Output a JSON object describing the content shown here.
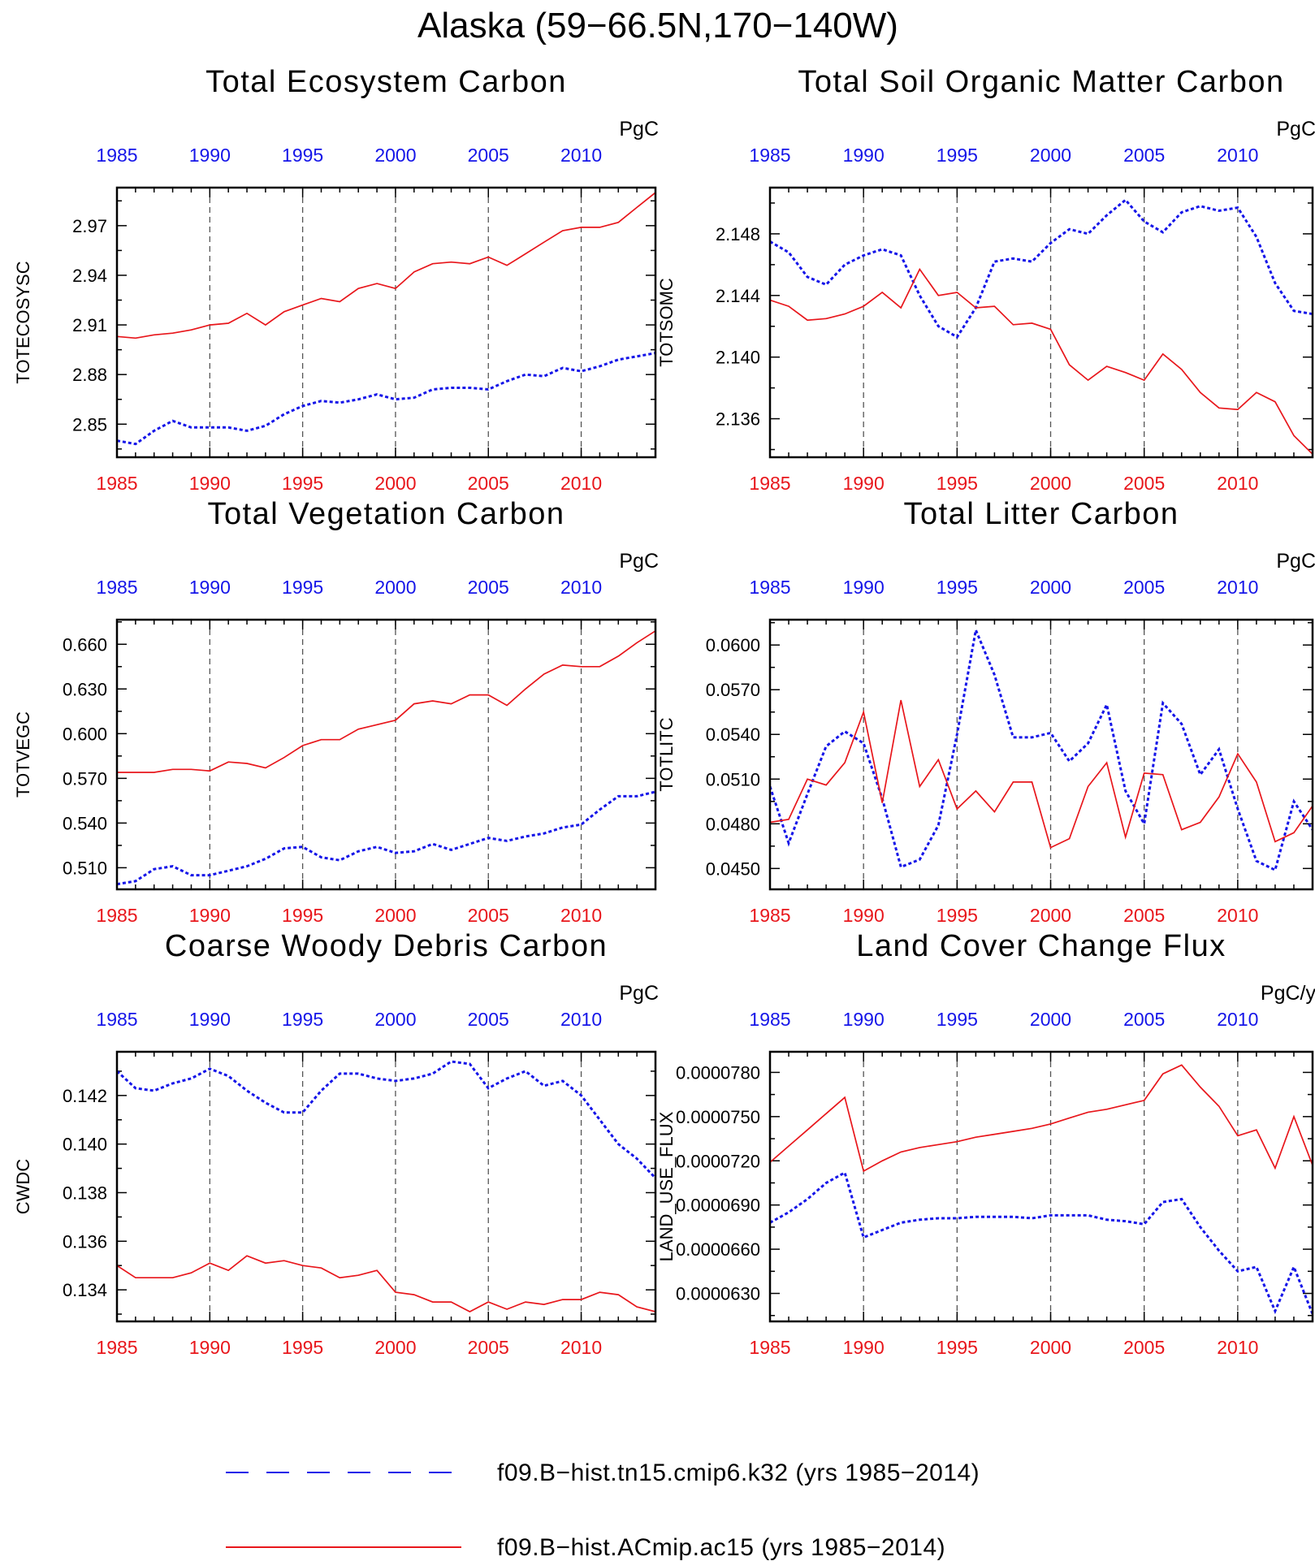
{
  "figure": {
    "title": "Alaska (59−66.5N,170−140W)",
    "legend": [
      {
        "label": "f09.B−hist.tn15.cmip6.k32 (yrs 1985−2014)",
        "color": "#1515e8",
        "style": "dashed"
      },
      {
        "label": "f09.B−hist.ACmip.ac15 (yrs 1985−2014)",
        "color": "#e8161b",
        "style": "solid"
      }
    ]
  },
  "chart_data": [
    {
      "type": "line",
      "title": "Total Ecosystem Carbon",
      "ylabel": "TOTECOSYSC",
      "units": "PgC",
      "xlim": [
        1985,
        2014
      ],
      "ylim": [
        2.83,
        2.993
      ],
      "yticks": [
        2.85,
        2.88,
        2.91,
        2.94,
        2.97
      ],
      "ytick_labels": [
        "2.85",
        "2.88",
        "2.91",
        "2.94",
        "2.97"
      ],
      "xticks": [
        1985,
        1990,
        1995,
        2000,
        2005,
        2010
      ],
      "xtick_labels": [
        "1985",
        "1990",
        "1995",
        "2000",
        "2005",
        "2010"
      ],
      "x": [
        1985,
        1986,
        1987,
        1988,
        1989,
        1990,
        1991,
        1992,
        1993,
        1994,
        1995,
        1996,
        1997,
        1998,
        1999,
        2000,
        2001,
        2002,
        2003,
        2004,
        2005,
        2006,
        2007,
        2008,
        2009,
        2010,
        2011,
        2012,
        2013,
        2014
      ],
      "series": [
        {
          "values": [
            2.84,
            2.838,
            2.846,
            2.852,
            2.848,
            2.848,
            2.848,
            2.846,
            2.849,
            2.856,
            2.861,
            2.864,
            2.863,
            2.865,
            2.868,
            2.865,
            2.866,
            2.871,
            2.872,
            2.872,
            2.871,
            2.876,
            2.88,
            2.879,
            2.884,
            2.882,
            2.885,
            2.889,
            2.891,
            2.893
          ],
          "color": "#1515e8",
          "style": "dashed"
        },
        {
          "values": [
            2.903,
            2.902,
            2.904,
            2.905,
            2.907,
            2.91,
            2.911,
            2.917,
            2.91,
            2.918,
            2.922,
            2.926,
            2.924,
            2.932,
            2.935,
            2.932,
            2.942,
            2.947,
            2.948,
            2.947,
            2.951,
            2.946,
            2.953,
            2.96,
            2.967,
            2.969,
            2.969,
            2.972,
            2.981,
            2.99
          ],
          "color": "#e8161b",
          "style": "solid"
        }
      ]
    },
    {
      "type": "line",
      "title": "Total Soil Organic Matter Carbon",
      "ylabel": "TOTSOMC",
      "units": "PgC",
      "xlim": [
        1985,
        2014
      ],
      "ylim": [
        2.1335,
        2.151
      ],
      "yticks": [
        2.136,
        2.14,
        2.144,
        2.148
      ],
      "ytick_labels": [
        "2.136",
        "2.140",
        "2.144",
        "2.148"
      ],
      "xticks": [
        1985,
        1990,
        1995,
        2000,
        2005,
        2010
      ],
      "xtick_labels": [
        "1985",
        "1990",
        "1995",
        "2000",
        "2005",
        "2010"
      ],
      "x": [
        1985,
        1986,
        1987,
        1988,
        1989,
        1990,
        1991,
        1992,
        1993,
        1994,
        1995,
        1996,
        1997,
        1998,
        1999,
        2000,
        2001,
        2002,
        2003,
        2004,
        2005,
        2006,
        2007,
        2008,
        2009,
        2010,
        2011,
        2012,
        2013,
        2014
      ],
      "series": [
        {
          "values": [
            2.1475,
            2.1468,
            2.1452,
            2.1447,
            2.146,
            2.1466,
            2.147,
            2.1466,
            2.144,
            2.142,
            2.1413,
            2.1432,
            2.1462,
            2.1464,
            2.1462,
            2.1474,
            2.1483,
            2.148,
            2.1492,
            2.1502,
            2.1488,
            2.1481,
            2.1494,
            2.1498,
            2.1495,
            2.1497,
            2.1478,
            2.1448,
            2.143,
            2.1428
          ],
          "color": "#1515e8",
          "style": "dashed"
        },
        {
          "values": [
            2.1437,
            2.1433,
            2.1424,
            2.1425,
            2.1428,
            2.1433,
            2.1442,
            2.1432,
            2.1457,
            2.144,
            2.1442,
            2.1432,
            2.1433,
            2.1421,
            2.1422,
            2.1418,
            2.1395,
            2.1385,
            2.1394,
            2.139,
            2.1385,
            2.1402,
            2.1392,
            2.1377,
            2.1367,
            2.1366,
            2.1377,
            2.1371,
            2.1349,
            2.1337
          ],
          "color": "#e8161b",
          "style": "solid"
        }
      ]
    },
    {
      "type": "line",
      "title": "Total Vegetation Carbon",
      "ylabel": "TOTVEGC",
      "units": "PgC",
      "xlim": [
        1985,
        2014
      ],
      "ylim": [
        0.4955,
        0.6765
      ],
      "yticks": [
        0.51,
        0.54,
        0.57,
        0.6,
        0.63,
        0.66
      ],
      "ytick_labels": [
        "0.510",
        "0.540",
        "0.570",
        "0.600",
        "0.630",
        "0.660"
      ],
      "xticks": [
        1985,
        1990,
        1995,
        2000,
        2005,
        2010
      ],
      "xtick_labels": [
        "1985",
        "1990",
        "1995",
        "2000",
        "2005",
        "2010"
      ],
      "x": [
        1985,
        1986,
        1987,
        1988,
        1989,
        1990,
        1991,
        1992,
        1993,
        1994,
        1995,
        1996,
        1997,
        1998,
        1999,
        2000,
        2001,
        2002,
        2003,
        2004,
        2005,
        2006,
        2007,
        2008,
        2009,
        2010,
        2011,
        2012,
        2013,
        2014
      ],
      "series": [
        {
          "values": [
            0.499,
            0.501,
            0.509,
            0.511,
            0.505,
            0.505,
            0.508,
            0.511,
            0.516,
            0.523,
            0.524,
            0.517,
            0.515,
            0.521,
            0.524,
            0.52,
            0.521,
            0.526,
            0.522,
            0.526,
            0.53,
            0.528,
            0.531,
            0.533,
            0.537,
            0.539,
            0.549,
            0.558,
            0.558,
            0.561
          ],
          "color": "#1515e8",
          "style": "dashed"
        },
        {
          "values": [
            0.574,
            0.574,
            0.574,
            0.576,
            0.576,
            0.575,
            0.581,
            0.58,
            0.577,
            0.584,
            0.592,
            0.596,
            0.596,
            0.603,
            0.606,
            0.609,
            0.62,
            0.622,
            0.62,
            0.626,
            0.626,
            0.619,
            0.63,
            0.64,
            0.646,
            0.645,
            0.645,
            0.652,
            0.661,
            0.669
          ],
          "color": "#e8161b",
          "style": "solid"
        }
      ]
    },
    {
      "type": "line",
      "title": "Total Litter Carbon",
      "ylabel": "TOTLITC",
      "units": "PgC",
      "xlim": [
        1985,
        2014
      ],
      "ylim": [
        0.0436,
        0.0617
      ],
      "yticks": [
        0.045,
        0.048,
        0.051,
        0.054,
        0.057,
        0.06
      ],
      "ytick_labels": [
        "0.0450",
        "0.0480",
        "0.0510",
        "0.0540",
        "0.0570",
        "0.0600"
      ],
      "xticks": [
        1985,
        1990,
        1995,
        2000,
        2005,
        2010
      ],
      "xtick_labels": [
        "1985",
        "1990",
        "1995",
        "2000",
        "2005",
        "2010"
      ],
      "x": [
        1985,
        1986,
        1987,
        1988,
        1989,
        1990,
        1991,
        1992,
        1993,
        1994,
        1995,
        1996,
        1997,
        1998,
        1999,
        2000,
        2001,
        2002,
        2003,
        2004,
        2005,
        2006,
        2007,
        2008,
        2009,
        2010,
        2011,
        2012,
        2013,
        2014
      ],
      "series": [
        {
          "values": [
            0.0505,
            0.0467,
            0.05,
            0.0532,
            0.0542,
            0.0534,
            0.0497,
            0.0451,
            0.0456,
            0.0479,
            0.054,
            0.061,
            0.058,
            0.0538,
            0.0538,
            0.0541,
            0.0522,
            0.0534,
            0.056,
            0.0502,
            0.048,
            0.0561,
            0.0547,
            0.0513,
            0.053,
            0.049,
            0.0455,
            0.0449,
            0.0495,
            0.0476
          ],
          "color": "#1515e8",
          "style": "dashed"
        },
        {
          "values": [
            0.0481,
            0.0483,
            0.051,
            0.0506,
            0.0521,
            0.0555,
            0.0494,
            0.0563,
            0.0505,
            0.0523,
            0.049,
            0.0502,
            0.0488,
            0.0508,
            0.0508,
            0.0464,
            0.047,
            0.0505,
            0.0521,
            0.0471,
            0.0514,
            0.0513,
            0.0476,
            0.0481,
            0.0498,
            0.0527,
            0.0508,
            0.0468,
            0.0474,
            0.0492
          ],
          "color": "#e8161b",
          "style": "solid"
        }
      ]
    },
    {
      "type": "line",
      "title": "Coarse Woody Debris Carbon",
      "ylabel": "CWDC",
      "units": "PgC",
      "xlim": [
        1985,
        2014
      ],
      "ylim": [
        0.1327,
        0.1438
      ],
      "yticks": [
        0.134,
        0.136,
        0.138,
        0.14,
        0.142
      ],
      "ytick_labels": [
        "0.134",
        "0.136",
        "0.138",
        "0.140",
        "0.142"
      ],
      "xticks": [
        1985,
        1990,
        1995,
        2000,
        2005,
        2010
      ],
      "xtick_labels": [
        "1985",
        "1990",
        "1995",
        "2000",
        "2005",
        "2010"
      ],
      "x": [
        1985,
        1986,
        1987,
        1988,
        1989,
        1990,
        1991,
        1992,
        1993,
        1994,
        1995,
        1996,
        1997,
        1998,
        1999,
        2000,
        2001,
        2002,
        2003,
        2004,
        2005,
        2006,
        2007,
        2008,
        2009,
        2010,
        2011,
        2012,
        2013,
        2014
      ],
      "series": [
        {
          "values": [
            0.143,
            0.1423,
            0.1422,
            0.1425,
            0.1427,
            0.1431,
            0.1428,
            0.1422,
            0.1417,
            0.1413,
            0.1413,
            0.1422,
            0.1429,
            0.1429,
            0.1427,
            0.1426,
            0.1427,
            0.1429,
            0.1434,
            0.1433,
            0.1423,
            0.1427,
            0.143,
            0.1424,
            0.1426,
            0.142,
            0.141,
            0.14,
            0.1394,
            0.1386
          ],
          "color": "#1515e8",
          "style": "dashed"
        },
        {
          "values": [
            0.135,
            0.1345,
            0.1345,
            0.1345,
            0.1347,
            0.1351,
            0.1348,
            0.1354,
            0.1351,
            0.1352,
            0.135,
            0.1349,
            0.1345,
            0.1346,
            0.1348,
            0.1339,
            0.1338,
            0.1335,
            0.1335,
            0.1331,
            0.1335,
            0.1332,
            0.1335,
            0.1334,
            0.1336,
            0.1336,
            0.1339,
            0.1338,
            0.1333,
            0.1331
          ],
          "color": "#e8161b",
          "style": "solid"
        }
      ]
    },
    {
      "type": "line",
      "title": "Land Cover Change Flux",
      "ylabel": "LAND_USE_FLUX",
      "units": "PgC/y",
      "xlim": [
        1985,
        2014
      ],
      "ylim": [
        6.11e-05,
        7.94e-05
      ],
      "yticks": [
        6.3e-05,
        6.6e-05,
        6.9e-05,
        7.2e-05,
        7.5e-05,
        7.8e-05
      ],
      "ytick_labels": [
        "0.0000630",
        "0.0000660",
        "0.0000690",
        "0.0000720",
        "0.0000750",
        "0.0000780"
      ],
      "xticks": [
        1985,
        1990,
        1995,
        2000,
        2005,
        2010
      ],
      "xtick_labels": [
        "1985",
        "1990",
        "1995",
        "2000",
        "2005",
        "2010"
      ],
      "x": [
        1985,
        1986,
        1987,
        1988,
        1989,
        1990,
        1991,
        1992,
        1993,
        1994,
        1995,
        1996,
        1997,
        1998,
        1999,
        2000,
        2001,
        2002,
        2003,
        2004,
        2005,
        2006,
        2007,
        2008,
        2009,
        2010,
        2011,
        2012,
        2013,
        2014
      ],
      "series": [
        {
          "values": [
            6.78e-05,
            6.85e-05,
            6.94e-05,
            7.05e-05,
            7.12e-05,
            6.68e-05,
            6.73e-05,
            6.78e-05,
            6.8e-05,
            6.81e-05,
            6.81e-05,
            6.82e-05,
            6.82e-05,
            6.82e-05,
            6.81e-05,
            6.83e-05,
            6.83e-05,
            6.83e-05,
            6.8e-05,
            6.79e-05,
            6.77e-05,
            6.92e-05,
            6.94e-05,
            6.75e-05,
            6.59e-05,
            6.45e-05,
            6.48e-05,
            6.18e-05,
            6.48e-05,
            6.16e-05
          ],
          "color": "#1515e8",
          "style": "dashed"
        },
        {
          "values": [
            7.19e-05,
            7.3e-05,
            7.41e-05,
            7.52e-05,
            7.63e-05,
            7.13e-05,
            7.2e-05,
            7.26e-05,
            7.29e-05,
            7.31e-05,
            7.33e-05,
            7.36e-05,
            7.38e-05,
            7.4e-05,
            7.42e-05,
            7.45e-05,
            7.49e-05,
            7.53e-05,
            7.55e-05,
            7.58e-05,
            7.61e-05,
            7.79e-05,
            7.85e-05,
            7.7e-05,
            7.57e-05,
            7.37e-05,
            7.41e-05,
            7.15e-05,
            7.5e-05,
            7.17e-05
          ],
          "color": "#e8161b",
          "style": "solid"
        }
      ]
    }
  ]
}
